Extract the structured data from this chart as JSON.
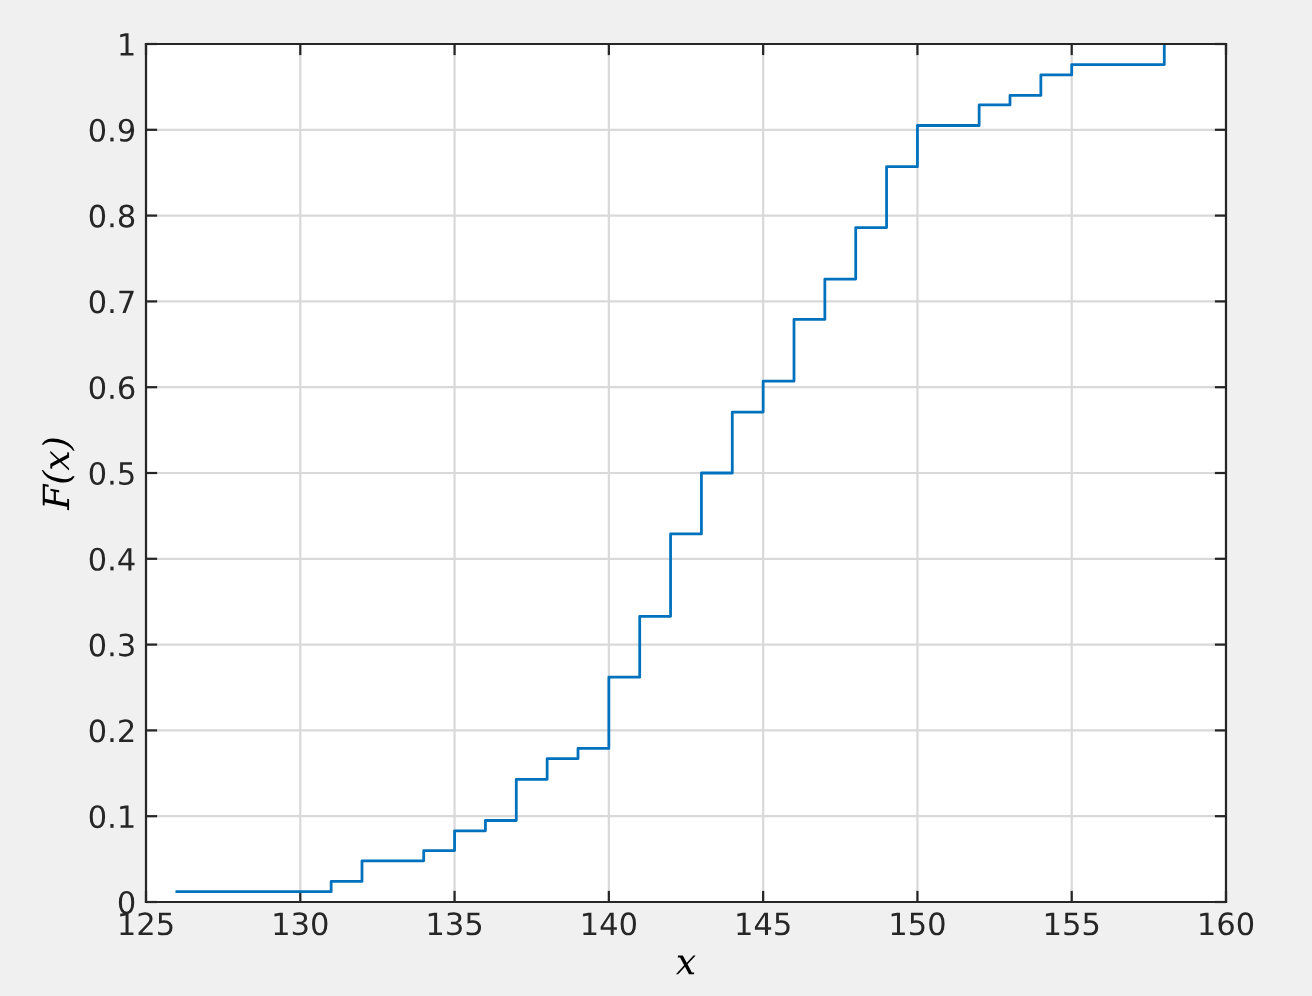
{
  "chart_data": {
    "type": "step",
    "xlabel": "x",
    "ylabel": "F(x)",
    "x": [
      126,
      131,
      132,
      134,
      135,
      136,
      137,
      138,
      139,
      140,
      141,
      142,
      143,
      144,
      145,
      146,
      147,
      148,
      149,
      150,
      152,
      153,
      154,
      155,
      158
    ],
    "series": [
      {
        "color": "#0072bd",
        "values": [
          0.012,
          0.024,
          0.048,
          0.06,
          0.083,
          0.095,
          0.143,
          0.167,
          0.179,
          0.262,
          0.333,
          0.429,
          0.5,
          0.571,
          0.607,
          0.679,
          0.726,
          0.786,
          0.857,
          0.905,
          0.929,
          0.94,
          0.964,
          0.976,
          1
        ]
      }
    ],
    "xlim": [
      125,
      160
    ],
    "xticks": [
      125,
      130,
      135,
      140,
      145,
      150,
      155,
      160
    ],
    "ylim": [
      0,
      1
    ],
    "yticks": [
      0,
      0.1,
      0.2,
      0.3,
      0.4,
      0.5,
      0.6,
      0.7,
      0.8,
      0.9,
      1
    ],
    "grid": true,
    "line_style": "solid"
  }
}
